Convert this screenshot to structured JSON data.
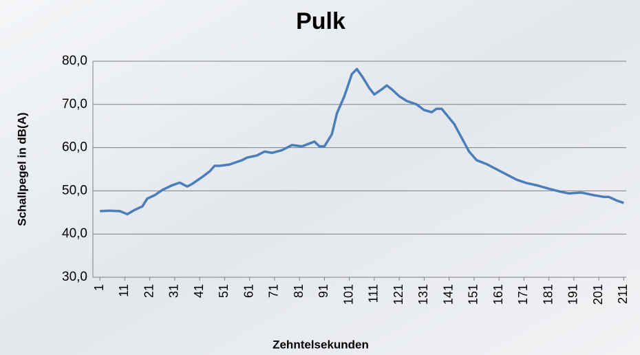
{
  "chart_data": {
    "type": "line",
    "title": "Pulk",
    "x_label": "Zehntelsekunden",
    "y_label": "Schallpegel in dB(A)",
    "x": [
      1,
      5,
      9,
      12,
      15,
      18,
      20,
      23,
      26,
      30,
      33,
      36,
      38,
      42,
      45,
      47,
      49,
      53,
      58,
      60,
      64,
      67,
      70,
      74,
      78,
      82,
      87,
      89,
      91,
      94,
      96,
      99,
      102,
      104,
      106,
      109,
      111,
      114,
      116,
      118,
      121,
      124,
      128,
      131,
      134,
      136,
      138,
      140,
      143,
      146,
      149,
      152,
      156,
      160,
      164,
      168,
      172,
      176,
      181,
      185,
      189,
      194,
      199,
      203,
      205,
      208,
      211
    ],
    "series": [
      {
        "name": "Pulk",
        "color": "#4a7ebb",
        "values": [
          45.3,
          45.4,
          45.3,
          44.6,
          45.6,
          46.4,
          48.2,
          49.0,
          50.2,
          51.3,
          51.9,
          51.0,
          51.6,
          53.2,
          54.5,
          55.8,
          55.8,
          56.1,
          57.1,
          57.7,
          58.2,
          59.1,
          58.8,
          59.4,
          60.6,
          60.3,
          61.4,
          60.3,
          60.3,
          63.1,
          67.9,
          71.9,
          77.0,
          78.2,
          76.6,
          73.8,
          72.3,
          73.5,
          74.4,
          73.5,
          71.9,
          70.8,
          70.0,
          68.7,
          68.2,
          69.0,
          69.0,
          67.6,
          65.5,
          62.3,
          59.1,
          57.1,
          56.2,
          55.0,
          53.8,
          52.6,
          51.8,
          51.3,
          50.5,
          49.9,
          49.4,
          49.6,
          49.0,
          48.6,
          48.6,
          47.8,
          47.2
        ]
      }
    ],
    "xlim": [
      -1.8,
      212
    ],
    "xticks": [
      1,
      11,
      21,
      31,
      41,
      51,
      61,
      71,
      81,
      91,
      101,
      111,
      121,
      131,
      141,
      151,
      161,
      171,
      181,
      191,
      201,
      211
    ],
    "ylim": [
      30,
      80
    ],
    "yticks": [
      {
        "value": 30,
        "label": "30,0"
      },
      {
        "value": 40,
        "label": "40,0"
      },
      {
        "value": 50,
        "label": "50,0"
      },
      {
        "value": 60,
        "label": "60,0"
      },
      {
        "value": 70,
        "label": "70,0"
      },
      {
        "value": 80,
        "label": "80,0"
      }
    ],
    "grid": true
  }
}
